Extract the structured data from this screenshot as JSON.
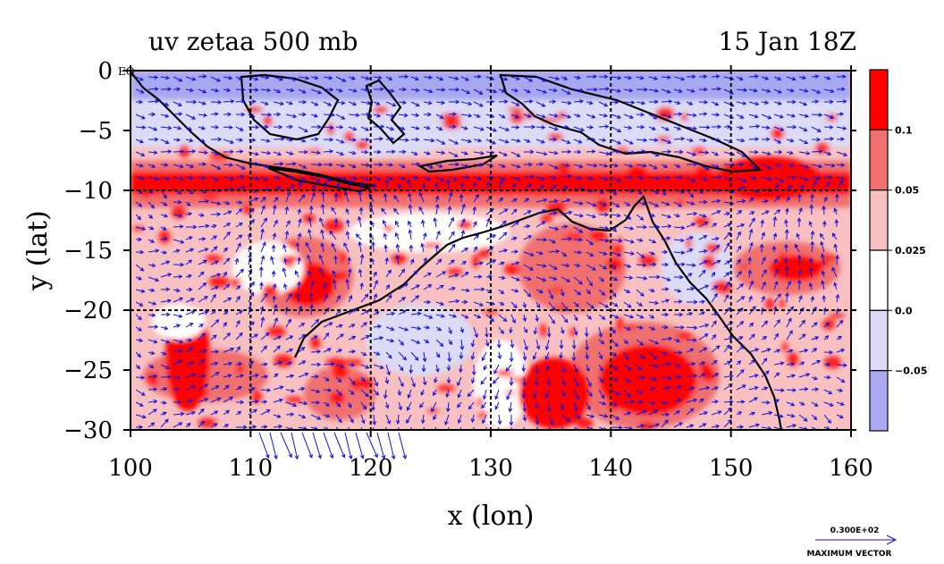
{
  "chart_data": {
    "type": "heatmap",
    "title_left": "uv zetaa 500 mb",
    "title_right": "15 Jan 18Z",
    "xlabel": "x (lon)",
    "ylabel": "y (lat)",
    "xlim": [
      100,
      160
    ],
    "ylim": [
      -30,
      0
    ],
    "x_ticks": [
      "100",
      "110",
      "120",
      "130",
      "140",
      "150",
      "160"
    ],
    "y_ticks": [
      "0",
      "−5",
      "−10",
      "−15",
      "−20",
      "−25",
      "−30"
    ],
    "corner_label": "EQ",
    "grid": true,
    "colorbar": {
      "levels": [
        "0.1",
        "0.05",
        "0.025",
        "0.0",
        "−0.05"
      ],
      "colors": [
        "#ff0000",
        "#f07070",
        "#f8c0c0",
        "#ffffff",
        "#dcdcf8",
        "#a8a8f0"
      ]
    },
    "vector_legend": {
      "magnitude": "0.300E+02",
      "label": "MAXIMUM VECTOR"
    },
    "colors": {
      "strong_positive": "#ff0000",
      "positive": "#f07070",
      "weak_positive": "#f8c0c0",
      "neutral": "#ffffff",
      "weak_negative": "#dcdcf8",
      "negative": "#a8a8f0",
      "vector": "#0000ff",
      "coastline": "#000000"
    }
  }
}
